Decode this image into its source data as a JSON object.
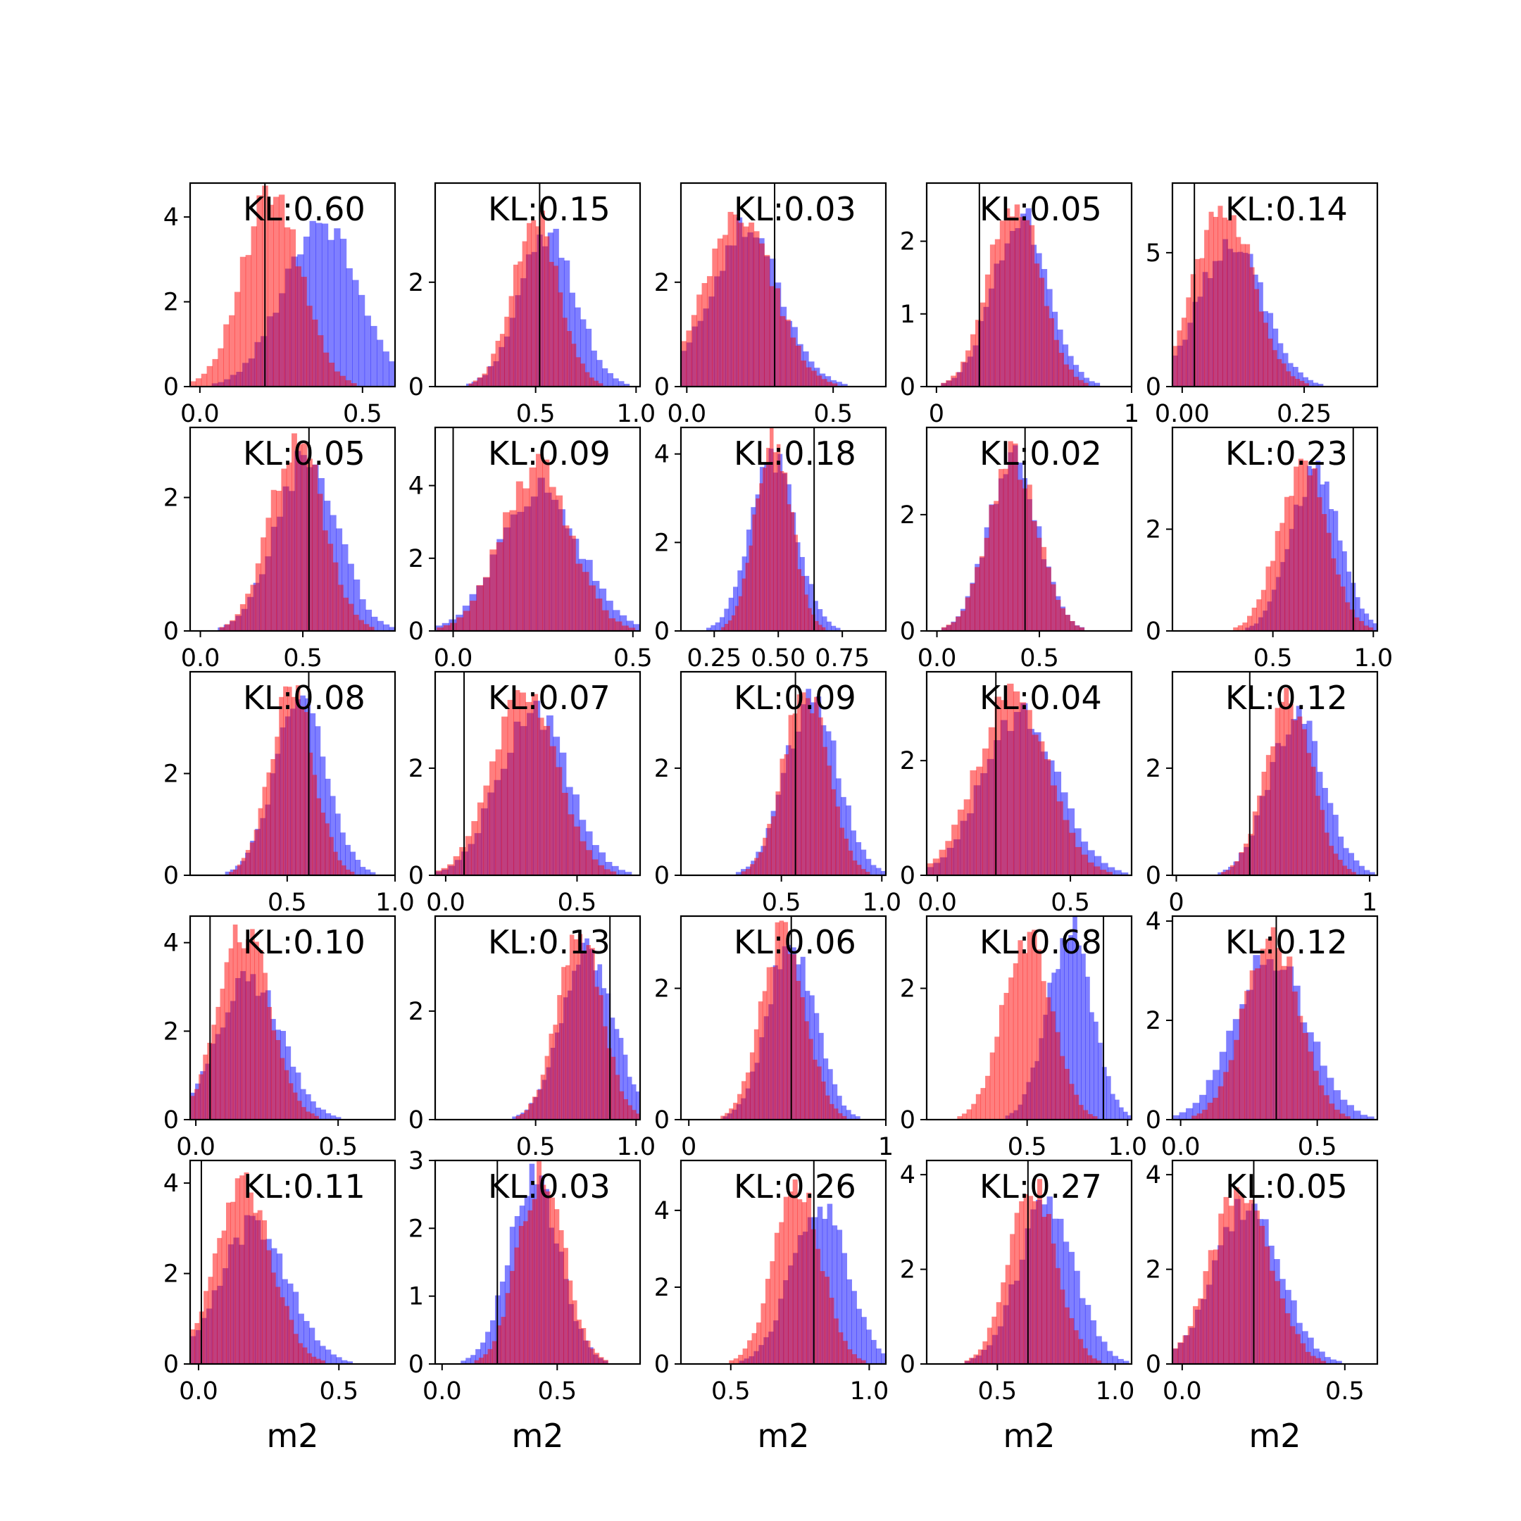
{
  "chart_data": {
    "type": "histogram-grid",
    "rows": 5,
    "cols": 5,
    "colors": {
      "blue": "#0000ff",
      "red": "#ff0000",
      "bar_alpha": 0.5
    },
    "xlabel": "m2",
    "panels": [
      {
        "kl": "KL:0.60",
        "xlim": [
          -0.03,
          0.6
        ],
        "ylim": [
          0,
          4.8
        ],
        "xticks": [
          0.0,
          0.5
        ],
        "yticks": [
          0,
          2,
          4
        ],
        "vline": 0.2,
        "blue": {
          "mean": 0.37,
          "sd": 0.115,
          "peak": 3.9
        },
        "red": {
          "mean": 0.22,
          "sd": 0.09,
          "peak": 4.5
        }
      },
      {
        "kl": "KL:0.15",
        "xlim": [
          0.0,
          1.02
        ],
        "ylim": [
          0,
          3.9
        ],
        "xticks": [
          0.5,
          1.0
        ],
        "yticks": [
          0,
          2
        ],
        "vline": 0.52,
        "blue": {
          "mean": 0.56,
          "sd": 0.14,
          "peak": 2.9
        },
        "red": {
          "mean": 0.5,
          "sd": 0.115,
          "peak": 3.2
        }
      },
      {
        "kl": "KL:0.03",
        "xlim": [
          -0.02,
          0.68
        ],
        "ylim": [
          0,
          3.9
        ],
        "xticks": [
          0.0,
          0.5
        ],
        "yticks": [
          0,
          2
        ],
        "vline": 0.3,
        "blue": {
          "mean": 0.2,
          "sd": 0.12,
          "peak": 3.0
        },
        "red": {
          "mean": 0.18,
          "sd": 0.115,
          "peak": 3.3
        }
      },
      {
        "kl": "KL:0.05",
        "xlim": [
          -0.05,
          1.0
        ],
        "ylim": [
          0,
          2.8
        ],
        "xticks": [
          0,
          1
        ],
        "yticks": [
          0,
          1,
          2
        ],
        "vline": 0.22,
        "blue": {
          "mean": 0.43,
          "sd": 0.14,
          "peak": 2.4
        },
        "red": {
          "mean": 0.4,
          "sd": 0.13,
          "peak": 2.6
        }
      },
      {
        "kl": "KL:0.14",
        "xlim": [
          -0.02,
          0.4
        ],
        "ylim": [
          0,
          7.6
        ],
        "xticks": [
          0.0,
          0.25
        ],
        "xtick_labels": [
          "0.00",
          "0.25"
        ],
        "yticks": [
          0,
          5
        ],
        "vline": 0.025,
        "blue": {
          "mean": 0.1,
          "sd": 0.065,
          "peak": 5.5
        },
        "red": {
          "mean": 0.085,
          "sd": 0.06,
          "peak": 6.8
        }
      },
      {
        "kl": "KL:0.05",
        "xlim": [
          -0.05,
          0.95
        ],
        "ylim": [
          0,
          3.05
        ],
        "xticks": [
          0.0,
          0.5
        ],
        "yticks": [
          0,
          2
        ],
        "vline": 0.53,
        "blue": {
          "mean": 0.52,
          "sd": 0.15,
          "peak": 2.6
        },
        "red": {
          "mean": 0.47,
          "sd": 0.13,
          "peak": 2.9
        }
      },
      {
        "kl": "KL:0.09",
        "xlim": [
          -0.05,
          0.52
        ],
        "ylim": [
          0,
          5.6
        ],
        "xticks": [
          0.0,
          0.5
        ],
        "yticks": [
          0,
          2,
          4
        ],
        "vline": 0.0,
        "blue": {
          "mean": 0.24,
          "sd": 0.11,
          "peak": 3.9
        },
        "red": {
          "mean": 0.23,
          "sd": 0.095,
          "peak": 4.5
        }
      },
      {
        "kl": "KL:0.18",
        "xlim": [
          0.12,
          0.92
        ],
        "ylim": [
          0,
          4.6
        ],
        "xticks": [
          0.25,
          0.5,
          0.75
        ],
        "xtick_labels": [
          "0.25",
          "0.50",
          "0.75"
        ],
        "yticks": [
          0,
          2,
          4
        ],
        "vline": 0.64,
        "blue": {
          "mean": 0.48,
          "sd": 0.09,
          "peak": 3.8
        },
        "red": {
          "mean": 0.48,
          "sd": 0.07,
          "peak": 4.4
        }
      },
      {
        "kl": "KL:0.02",
        "xlim": [
          -0.05,
          0.95
        ],
        "ylim": [
          0,
          3.5
        ],
        "xticks": [
          0.0,
          0.5
        ],
        "yticks": [
          0,
          2
        ],
        "vline": 0.43,
        "blue": {
          "mean": 0.37,
          "sd": 0.12,
          "peak": 3.0
        },
        "red": {
          "mean": 0.37,
          "sd": 0.12,
          "peak": 3.0
        }
      },
      {
        "kl": "KL:0.23",
        "xlim": [
          0.0,
          1.02
        ],
        "ylim": [
          0,
          4.0
        ],
        "xticks": [
          0.5,
          1.0
        ],
        "yticks": [
          0,
          2
        ],
        "vline": 0.9,
        "blue": {
          "mean": 0.71,
          "sd": 0.12,
          "peak": 3.2
        },
        "red": {
          "mean": 0.65,
          "sd": 0.12,
          "peak": 3.3
        }
      },
      {
        "kl": "KL:0.08",
        "xlim": [
          0.05,
          1.0
        ],
        "ylim": [
          0,
          4.0
        ],
        "xticks": [
          0.5,
          1.0
        ],
        "yticks": [
          0,
          2
        ],
        "vline": 0.6,
        "blue": {
          "mean": 0.56,
          "sd": 0.12,
          "peak": 3.4
        },
        "red": {
          "mean": 0.52,
          "sd": 0.1,
          "peak": 3.7
        }
      },
      {
        "kl": "KL:0.07",
        "xlim": [
          -0.04,
          0.74
        ],
        "ylim": [
          0,
          3.8
        ],
        "xticks": [
          0.0,
          0.5
        ],
        "yticks": [
          0,
          2
        ],
        "vline": 0.07,
        "blue": {
          "mean": 0.33,
          "sd": 0.13,
          "peak": 3.1
        },
        "red": {
          "mean": 0.3,
          "sd": 0.12,
          "peak": 3.5
        }
      },
      {
        "kl": "KL:0.09",
        "xlim": [
          0.0,
          1.02
        ],
        "ylim": [
          0,
          3.8
        ],
        "xticks": [
          0.5,
          1.0
        ],
        "yticks": [
          0,
          2
        ],
        "vline": 0.57,
        "blue": {
          "mean": 0.65,
          "sd": 0.13,
          "peak": 3.3
        },
        "red": {
          "mean": 0.62,
          "sd": 0.11,
          "peak": 3.5
        }
      },
      {
        "kl": "KL:0.04",
        "xlim": [
          -0.04,
          0.73
        ],
        "ylim": [
          0,
          3.55
        ],
        "xticks": [
          0.0,
          0.5
        ],
        "yticks": [
          0,
          2
        ],
        "vline": 0.22,
        "blue": {
          "mean": 0.31,
          "sd": 0.14,
          "peak": 2.8
        },
        "red": {
          "mean": 0.28,
          "sd": 0.13,
          "peak": 3.2
        }
      },
      {
        "kl": "KL:0.12",
        "xlim": [
          -0.02,
          1.04
        ],
        "ylim": [
          0,
          3.8
        ],
        "xticks": [
          0,
          1
        ],
        "yticks": [
          0,
          2
        ],
        "vline": 0.38,
        "blue": {
          "mean": 0.62,
          "sd": 0.14,
          "peak": 3.0
        },
        "red": {
          "mean": 0.58,
          "sd": 0.12,
          "peak": 3.3
        }
      },
      {
        "kl": "KL:0.10",
        "xlim": [
          -0.02,
          0.7
        ],
        "ylim": [
          0,
          4.6
        ],
        "xticks": [
          0.0,
          0.5
        ],
        "yticks": [
          0,
          2,
          4
        ],
        "vline": 0.05,
        "blue": {
          "mean": 0.19,
          "sd": 0.11,
          "peak": 3.2
        },
        "red": {
          "mean": 0.17,
          "sd": 0.09,
          "peak": 4.3
        }
      },
      {
        "kl": "KL:0.13",
        "xlim": [
          0.0,
          1.02
        ],
        "ylim": [
          0,
          3.75
        ],
        "xticks": [
          0.5,
          1.0
        ],
        "yticks": [
          0,
          2
        ],
        "vline": 0.87,
        "blue": {
          "mean": 0.76,
          "sd": 0.13,
          "peak": 3.1
        },
        "red": {
          "mean": 0.72,
          "sd": 0.11,
          "peak": 3.4
        }
      },
      {
        "kl": "KL:0.06",
        "xlim": [
          -0.04,
          1.0
        ],
        "ylim": [
          0,
          3.1
        ],
        "xticks": [
          0,
          1
        ],
        "yticks": [
          0,
          2
        ],
        "vline": 0.52,
        "blue": {
          "mean": 0.52,
          "sd": 0.12,
          "peak": 2.7
        },
        "red": {
          "mean": 0.48,
          "sd": 0.11,
          "peak": 2.9
        }
      },
      {
        "kl": "KL:0.68",
        "xlim": [
          0.0,
          1.02
        ],
        "ylim": [
          0,
          3.1
        ],
        "xticks": [
          0.5,
          1.0
        ],
        "yticks": [
          0,
          2
        ],
        "vline": 0.88,
        "blue": {
          "mean": 0.71,
          "sd": 0.11,
          "peak": 2.9
        },
        "red": {
          "mean": 0.5,
          "sd": 0.12,
          "peak": 2.8
        }
      },
      {
        "kl": "KL:0.12",
        "xlim": [
          -0.03,
          0.72
        ],
        "ylim": [
          0,
          4.1
        ],
        "xticks": [
          0.0,
          0.5
        ],
        "yticks": [
          0,
          2,
          4
        ],
        "vline": 0.35,
        "blue": {
          "mean": 0.33,
          "sd": 0.13,
          "peak": 3.3
        },
        "red": {
          "mean": 0.33,
          "sd": 0.1,
          "peak": 3.8
        }
      },
      {
        "kl": "KL:0.11",
        "xlim": [
          -0.03,
          0.7
        ],
        "ylim": [
          0,
          4.5
        ],
        "xticks": [
          0.0,
          0.5
        ],
        "yticks": [
          0,
          2,
          4
        ],
        "vline": 0.01,
        "blue": {
          "mean": 0.2,
          "sd": 0.12,
          "peak": 3.1
        },
        "red": {
          "mean": 0.16,
          "sd": 0.1,
          "peak": 3.9
        }
      },
      {
        "kl": "KL:0.03",
        "xlim": [
          -0.03,
          0.86
        ],
        "ylim": [
          0,
          3.0
        ],
        "xticks": [
          0.0,
          0.5
        ],
        "yticks": [
          0,
          1,
          2,
          3
        ],
        "vline": 0.24,
        "blue": {
          "mean": 0.4,
          "sd": 0.11,
          "peak": 2.7
        },
        "red": {
          "mean": 0.43,
          "sd": 0.1,
          "peak": 2.8
        }
      },
      {
        "kl": "KL:0.26",
        "xlim": [
          0.32,
          1.06
        ],
        "ylim": [
          0,
          5.3
        ],
        "xticks": [
          0.5,
          1.0
        ],
        "yticks": [
          0,
          2,
          4
        ],
        "vline": 0.8,
        "blue": {
          "mean": 0.82,
          "sd": 0.1,
          "peak": 4.2
        },
        "red": {
          "mean": 0.74,
          "sd": 0.085,
          "peak": 4.6
        }
      },
      {
        "kl": "KL:0.27",
        "xlim": [
          0.2,
          1.07
        ],
        "ylim": [
          0,
          4.3
        ],
        "xticks": [
          0.5,
          1.0
        ],
        "yticks": [
          0,
          2,
          4
        ],
        "vline": 0.63,
        "blue": {
          "mean": 0.71,
          "sd": 0.12,
          "peak": 3.4
        },
        "red": {
          "mean": 0.65,
          "sd": 0.1,
          "peak": 3.8
        }
      },
      {
        "kl": "KL:0.05",
        "xlim": [
          -0.03,
          0.6
        ],
        "ylim": [
          0,
          4.3
        ],
        "xticks": [
          0.0,
          0.5
        ],
        "yticks": [
          0,
          2,
          4
        ],
        "vline": 0.22,
        "blue": {
          "mean": 0.2,
          "sd": 0.1,
          "peak": 3.4
        },
        "red": {
          "mean": 0.18,
          "sd": 0.09,
          "peak": 3.8
        }
      }
    ]
  }
}
